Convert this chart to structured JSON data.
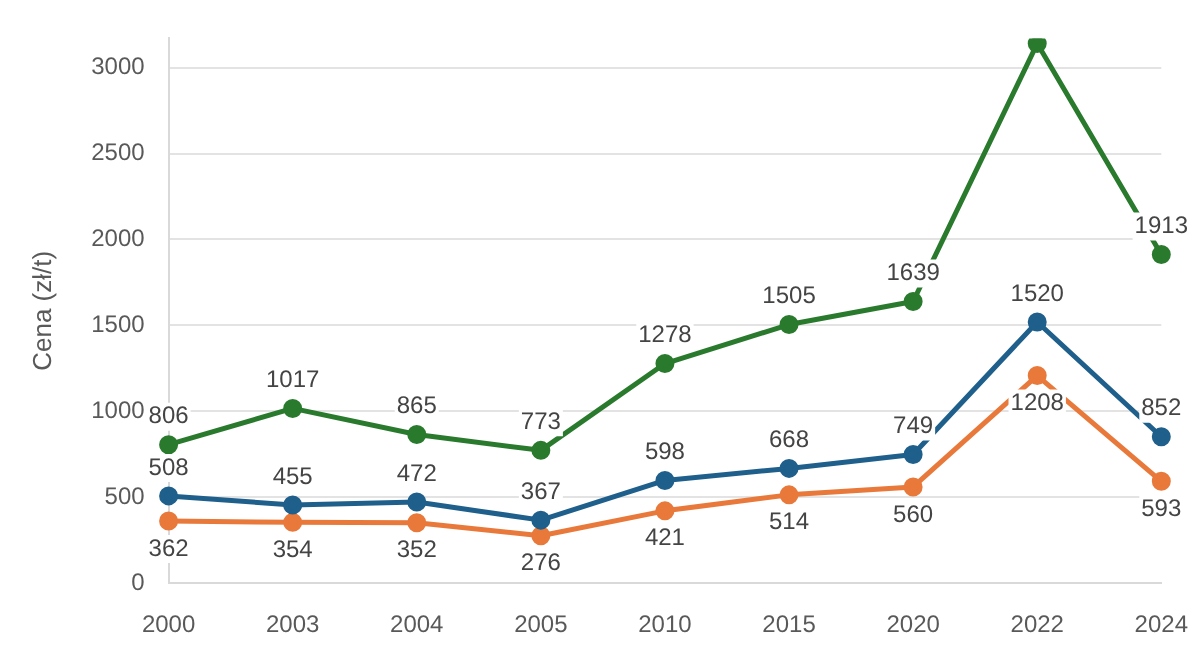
{
  "chart_data": {
    "type": "line",
    "ylabel": "Cena (zł/t)",
    "categories": [
      "2000",
      "2003",
      "2004",
      "2005",
      "2010",
      "2015",
      "2020",
      "2022",
      "2024"
    ],
    "series": [
      {
        "color": "#2a7a2e",
        "values": [
          806,
          1017,
          865,
          773,
          1278,
          1505,
          1639,
          3140,
          1913
        ],
        "value_labels": [
          "806",
          "1017",
          "865",
          "773",
          "1278",
          "1505",
          "1639",
          null,
          "1913"
        ]
      },
      {
        "color": "#1f5f8b",
        "values": [
          508,
          455,
          472,
          367,
          598,
          668,
          749,
          1520,
          852
        ],
        "value_labels": [
          "508",
          "455",
          "472",
          "367",
          "598",
          "668",
          "749",
          "1520",
          "852"
        ]
      },
      {
        "color": "#e8793a",
        "values": [
          362,
          354,
          352,
          276,
          421,
          514,
          560,
          1208,
          593
        ],
        "value_labels": [
          "362",
          "354",
          "352",
          "276",
          "421",
          "514",
          "560",
          "1208",
          "593"
        ]
      }
    ],
    "ylim": [
      0,
      3170
    ],
    "yticks": [
      0,
      500,
      1000,
      1500,
      2000,
      2500,
      3000
    ],
    "grid": "y",
    "legend": false,
    "marker": "circle",
    "line_style": "solid"
  }
}
